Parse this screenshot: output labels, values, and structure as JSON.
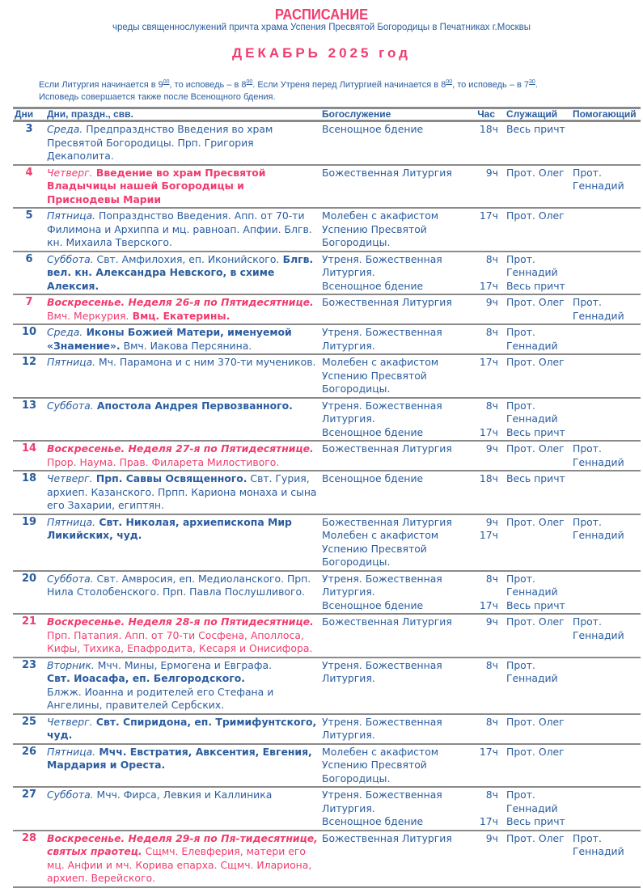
{
  "header": {
    "title": "РАСПИСАНИЕ",
    "subtitle": "чреды священнослужений причта храма Успения Пресвятой Богородицы в Печатниках г.Москвы",
    "month": "ДЕКАБРЬ  2025 год"
  },
  "note": {
    "p1": "Если Литургия начинается в 9",
    "s1": "00",
    "p2": ", то исповедь – в 8",
    "s2": "00",
    "p3": ". Если Утреня перед Литургией начинается в 8",
    "s3": "00",
    "p4": ", то исповедь – в 7",
    "s4": "30",
    "p5": ".",
    "line2": "Исповедь совершается также после Всенощного бдения."
  },
  "colors": {
    "text": "#2a5d9f",
    "accent": "#f03c6e"
  },
  "columns": [
    "Дни",
    "Дни, праздн., свв.",
    "Богослужение",
    "Час",
    "Служащий",
    "Помогающий"
  ],
  "rows": [
    {
      "day": "3",
      "red": false,
      "desc": [
        {
          "t": "Среда.",
          "s": "i"
        },
        {
          "t": " Предпразднство Введения во храм Пресвятой Богородицы. Прп. Григория Декаполита.",
          "s": "n"
        }
      ],
      "services": [
        {
          "name": "Всенощное бдение",
          "hour": "18ч",
          "servant": "Весь причт"
        }
      ],
      "helper": ""
    },
    {
      "day": "4",
      "red": true,
      "desc": [
        {
          "t": "Четверг.",
          "s": "i"
        },
        {
          "t": " Введение во храм Пресвятой Владычицы нашей Богородицы и Приснодевы Марии",
          "s": "b"
        }
      ],
      "services": [
        {
          "name": "Божественная Литургия",
          "hour": "9ч",
          "servant": "Прот. Олег"
        }
      ],
      "helper": "Прот. Геннадий"
    },
    {
      "day": "5",
      "red": false,
      "desc": [
        {
          "t": "Пятница.",
          "s": "i"
        },
        {
          "t": " Попразднство Введения. Апп. от 70-ти Филимона и Архиппа и мц. равноап. Апфии. Блгв. кн. Михаила Тверского.",
          "s": "n"
        }
      ],
      "services": [
        {
          "name": "Молебен с акафистом Успению Пресвятой Богородицы.",
          "hour": "17ч",
          "servant": "Прот. Олег"
        }
      ],
      "helper": ""
    },
    {
      "day": "6",
      "red": false,
      "desc": [
        {
          "t": "Суббота.",
          "s": "i"
        },
        {
          "t": " Свт. Амфилохия, еп. Иконийского.",
          "s": "n"
        },
        {
          "t": " Блгв. вел. кн. Александра Невского, в схиме Алексия.",
          "s": "b"
        }
      ],
      "services": [
        {
          "name": "Утреня. Божественная Литургия.",
          "hour": "8ч",
          "servant": "Прот. Геннадий"
        },
        {
          "name": "Всенощное бдение",
          "hour": "17ч",
          "servant": "Весь причт"
        }
      ],
      "helper": ""
    },
    {
      "day": "7",
      "red": true,
      "desc": [
        {
          "t": "Воскресенье. Неделя 26-я по Пятидесятнице.",
          "s": "bi"
        },
        {
          "t": " Вмч. Меркурия.",
          "s": "n"
        },
        {
          "t": " Вмц. Екатерины.",
          "s": "b"
        }
      ],
      "services": [
        {
          "name": "Божественная Литургия",
          "hour": "9ч",
          "servant": "Прот. Олег"
        }
      ],
      "helper": "Прот. Геннадий"
    },
    {
      "day": "10",
      "red": false,
      "desc": [
        {
          "t": "Среда.",
          "s": "i"
        },
        {
          "t": " Иконы Божией Матери, именуемой «Знамение».",
          "s": "b"
        },
        {
          "t": " Вмч. Иакова Персянина.",
          "s": "n"
        }
      ],
      "services": [
        {
          "name": "Утреня. Божественная Литургия.",
          "hour": "8ч",
          "servant": "Прот. Геннадий"
        }
      ],
      "helper": ""
    },
    {
      "day": "12",
      "red": false,
      "desc": [
        {
          "t": "Пятница.",
          "s": "i"
        },
        {
          "t": " Мч. Парамона и с ним 370-ти мучеников.",
          "s": "n"
        }
      ],
      "services": [
        {
          "name": "Молебен с акафистом Успению Пресвятой Богородицы.",
          "hour": "17ч",
          "servant": "Прот. Олег"
        }
      ],
      "helper": ""
    },
    {
      "day": "13",
      "red": false,
      "desc": [
        {
          "t": "Суббота.",
          "s": "i"
        },
        {
          "t": " Апостола Андрея Первозванного.",
          "s": "b"
        }
      ],
      "services": [
        {
          "name": "Утреня. Божественная Литургия.",
          "hour": "8ч",
          "servant": "Прот. Геннадий"
        },
        {
          "name": "Всенощное бдение",
          "hour": "17ч",
          "servant": "Весь причт"
        }
      ],
      "helper": ""
    },
    {
      "day": "14",
      "red": true,
      "desc": [
        {
          "t": "Воскресенье. Неделя 27-я по Пятидесятнице.",
          "s": "bi"
        },
        {
          "t": " Прор. Наума. Прав. Филарета Милостивого.",
          "s": "n"
        }
      ],
      "services": [
        {
          "name": "Божественная Литургия",
          "hour": "9ч",
          "servant": "Прот. Олег"
        }
      ],
      "helper": "Прот. Геннадий"
    },
    {
      "day": "18",
      "red": false,
      "desc": [
        {
          "t": "Четверг.",
          "s": "i"
        },
        {
          "t": " Прп. Саввы Освященного.",
          "s": "b"
        },
        {
          "t": " Свт. Гурия, архиеп. Казанского. Прпп. Кариона монаха и сына его Захарии, египтян.",
          "s": "n"
        }
      ],
      "services": [
        {
          "name": "Всенощное бдение",
          "hour": "18ч",
          "servant": "Весь причт"
        }
      ],
      "helper": ""
    },
    {
      "day": "19",
      "red": false,
      "desc": [
        {
          "t": "Пятница.",
          "s": "i"
        },
        {
          "t": " Свт. Николая, архиепископа Мир Ликийских, чуд.",
          "s": "b"
        }
      ],
      "services": [
        {
          "name": "Божественная Литургия",
          "hour": "9ч",
          "servant": "Прот. Олег"
        },
        {
          "name": "Молебен с акафистом Успению Пресвятой Богородицы.",
          "hour": "17ч",
          "servant": ""
        }
      ],
      "helper": "Прот. Геннадий"
    },
    {
      "day": "20",
      "red": false,
      "desc": [
        {
          "t": "Суббота.",
          "s": "i"
        },
        {
          "t": " Свт. Амвросия, еп. Медиоланского. Прп. Нила Столобенского. Прп. Павла Послушливого.",
          "s": "n"
        }
      ],
      "services": [
        {
          "name": "Утреня. Божественная Литургия.",
          "hour": "8ч",
          "servant": "Прот. Геннадий"
        },
        {
          "name": "Всенощное бдение",
          "hour": "17ч",
          "servant": "Весь причт"
        }
      ],
      "helper": ""
    },
    {
      "day": "21",
      "red": true,
      "desc": [
        {
          "t": "Воскресенье. Неделя 28-я по Пятидесятнице.",
          "s": "bi"
        },
        {
          "t": " Прп. Патапия. Апп. от 70-ти Сосфена, Аполлоса, Кифы, Тихика, Епафродита, Кесаря и Онисифора.",
          "s": "n"
        }
      ],
      "services": [
        {
          "name": "Божественная Литургия",
          "hour": "9ч",
          "servant": "Прот. Олег"
        }
      ],
      "helper": "Прот. Геннадий"
    },
    {
      "day": "23",
      "red": false,
      "desc": [
        {
          "t": "Вторник.",
          "s": "i"
        },
        {
          "t": " Мчч. Мины, Ермогена и Евграфа.",
          "s": "n"
        },
        {
          "t": "Свт. Иоасафа, еп. Белгородского.",
          "s": "b",
          "br": true
        },
        {
          "t": "Блжж. Иоанна и родителей его Стефана и Ангелины, правителей Сербских.",
          "s": "n",
          "br": true
        }
      ],
      "services": [
        {
          "name": "Утреня. Божественная Литургия.",
          "hour": "8ч",
          "servant": "Прот. Геннадий"
        }
      ],
      "helper": ""
    },
    {
      "day": "25",
      "red": false,
      "desc": [
        {
          "t": "Четверг.",
          "s": "i"
        },
        {
          "t": " Свт. Спиридона, еп. Тримифунтского, чуд.",
          "s": "b"
        }
      ],
      "services": [
        {
          "name": "Утреня. Божественная Литургия.",
          "hour": "8ч",
          "servant": "Прот. Олег"
        }
      ],
      "helper": ""
    },
    {
      "day": "26",
      "red": false,
      "desc": [
        {
          "t": "Пятница.",
          "s": "i"
        },
        {
          "t": " Мчч. Евстратия, Авксентия, Евгения, Мардария и Ореста.",
          "s": "b"
        }
      ],
      "services": [
        {
          "name": "Молебен с акафистом Успению Пресвятой Богородицы.",
          "hour": "17ч",
          "servant": "Прот. Олег"
        }
      ],
      "helper": ""
    },
    {
      "day": "27",
      "red": false,
      "desc": [
        {
          "t": "Суббота.",
          "s": "i"
        },
        {
          "t": " Мчч. Фирса, Левкия и Каллиника",
          "s": "n"
        }
      ],
      "services": [
        {
          "name": "Утреня. Божественная Литургия.",
          "hour": "8ч",
          "servant": "Прот. Геннадий"
        },
        {
          "name": "Всенощное бдение",
          "hour": "17ч",
          "servant": "Весь причт"
        }
      ],
      "helper": ""
    },
    {
      "day": "28",
      "red": true,
      "desc": [
        {
          "t": "Воскресенье. Неделя 29-я по Пя-тидесятнице, святых праотец.",
          "s": "bi"
        },
        {
          "t": " Сщмч. Елевферия, матери его мц. Анфии и мч. Корива епарха. Сщмч. Илариона, архиеп. Верейского.",
          "s": "n"
        }
      ],
      "services": [
        {
          "name": "Божественная Литургия",
          "hour": "9ч",
          "servant": "Прот. Олег"
        }
      ],
      "helper": "Прот. Геннадий"
    }
  ]
}
